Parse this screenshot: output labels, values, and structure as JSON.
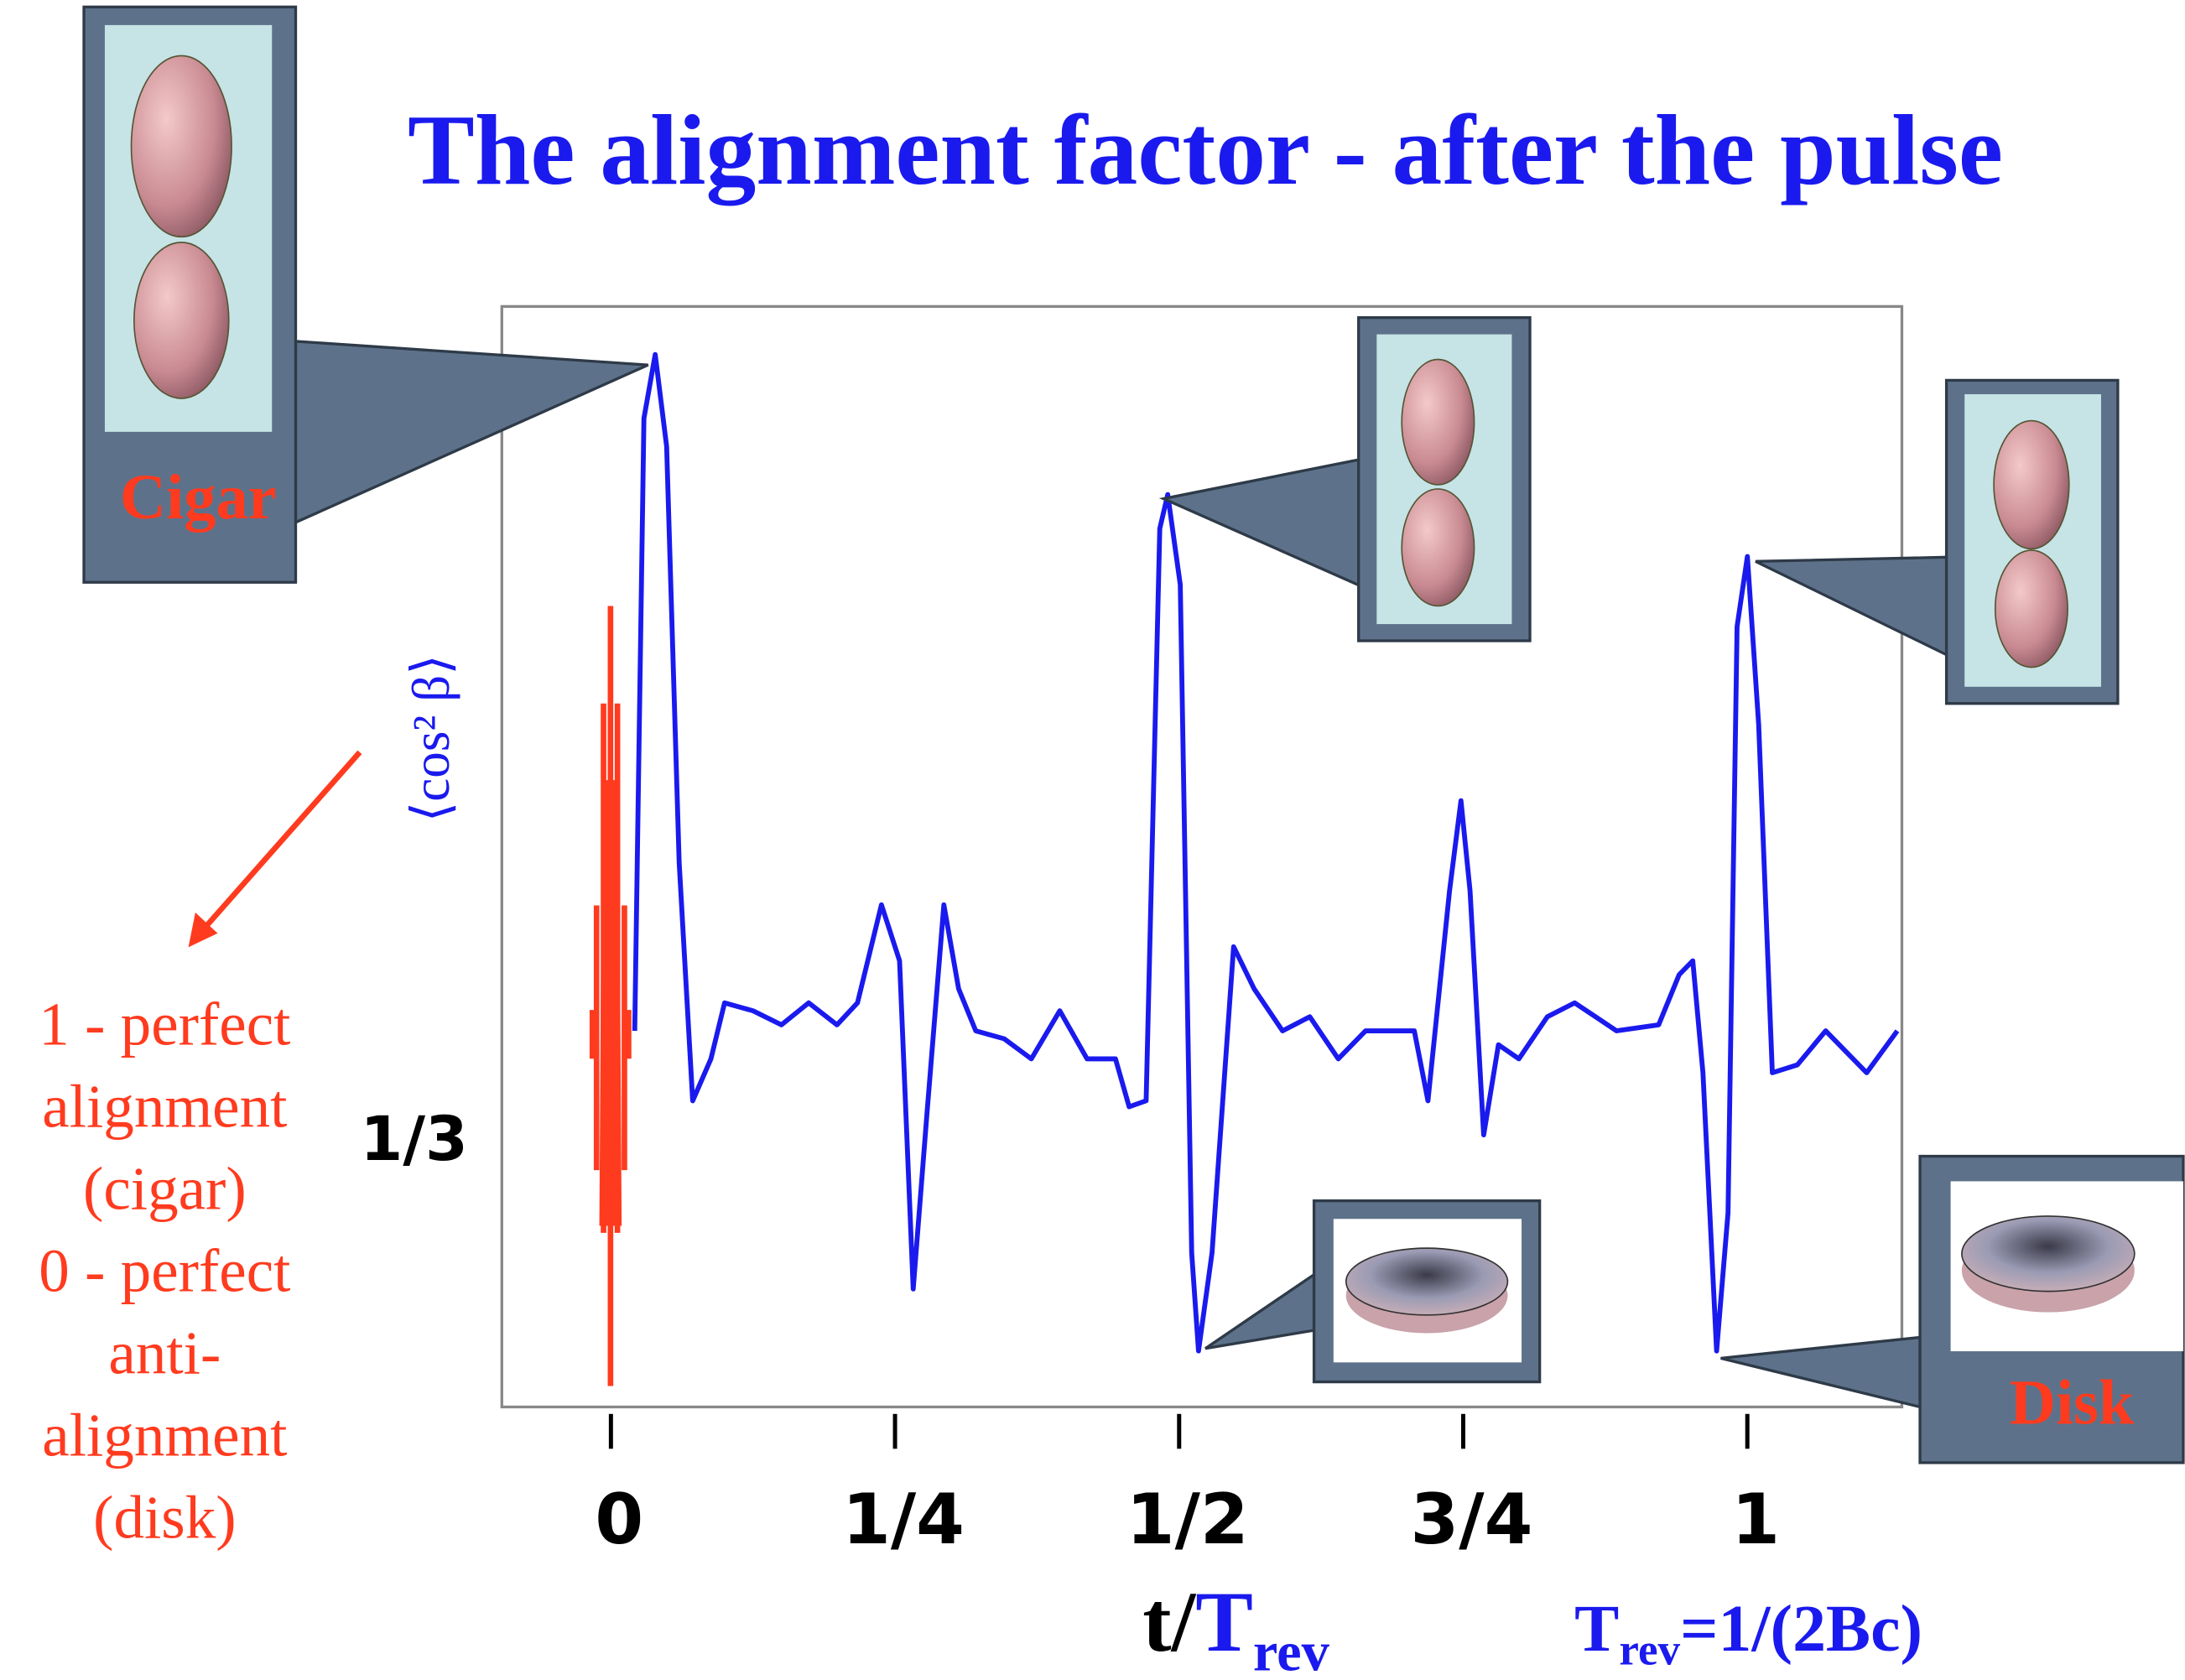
{
  "header": {
    "title": "The alignment factor - after the pulse"
  },
  "chart_data": {
    "type": "line",
    "y_label": "⟨cos² β⟩",
    "x_label": {
      "t": "t/",
      "T": "T",
      "sub": "rev"
    },
    "xlim": [
      -0.096,
      1.136
    ],
    "ylim": [
      0.2,
      0.75
    ],
    "xticks": [
      0,
      {
        "value": 0.25,
        "label": "1/4"
      },
      {
        "value": 0.5,
        "label": "1/2"
      },
      {
        "value": 0.75,
        "label": "3/4"
      },
      1
    ],
    "yticks": [
      {
        "value": 0.3333,
        "label": "1/3"
      }
    ],
    "series": [
      {
        "color": "#1a1aee",
        "x": [
          0.021,
          0.029,
          0.039,
          0.049,
          0.06,
          0.072,
          0.088,
          0.1,
          0.125,
          0.15,
          0.174,
          0.199,
          0.217,
          0.238,
          0.254,
          0.266,
          0.278,
          0.293,
          0.306,
          0.321,
          0.346,
          0.37,
          0.395,
          0.419,
          0.444,
          0.456,
          0.471,
          0.483,
          0.49,
          0.501,
          0.511,
          0.517,
          0.529,
          0.548,
          0.566,
          0.591,
          0.615,
          0.64,
          0.664,
          0.689,
          0.707,
          0.719,
          0.738,
          0.748,
          0.756,
          0.768,
          0.781,
          0.799,
          0.824,
          0.848,
          0.885,
          0.922,
          0.94,
          0.952,
          0.961,
          0.973,
          0.983,
          0.991,
          1.0,
          1.01,
          1.022,
          1.044,
          1.069,
          1.105,
          1.132
        ],
        "values": [
          0.388,
          0.694,
          0.726,
          0.68,
          0.472,
          0.353,
          0.374,
          0.402,
          0.398,
          0.391,
          0.402,
          0.391,
          0.402,
          0.451,
          0.423,
          0.259,
          0.346,
          0.451,
          0.409,
          0.388,
          0.384,
          0.374,
          0.398,
          0.374,
          0.374,
          0.35,
          0.353,
          0.639,
          0.656,
          0.611,
          0.277,
          0.228,
          0.277,
          0.43,
          0.409,
          0.388,
          0.395,
          0.374,
          0.388,
          0.388,
          0.388,
          0.353,
          0.458,
          0.503,
          0.458,
          0.336,
          0.381,
          0.374,
          0.395,
          0.402,
          0.388,
          0.391,
          0.416,
          0.423,
          0.367,
          0.228,
          0.297,
          0.59,
          0.625,
          0.541,
          0.367,
          0.371,
          0.388,
          0.367,
          0.388
        ]
      }
    ],
    "legend_text": [
      "1 - perfect",
      "alignment",
      "(cigar)",
      "0 - perfect",
      "anti-",
      "alignment",
      "(disk)"
    ],
    "formula": {
      "T": "T",
      "sub": "rev",
      "rest": "=1/(2Bc)"
    },
    "callouts": {
      "cigar": "Cigar",
      "disk": "Disk"
    }
  }
}
